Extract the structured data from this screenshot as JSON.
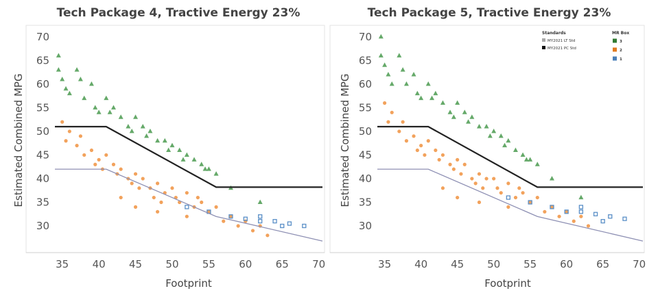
{
  "chart_data": [
    {
      "type": "scatter",
      "title": "Tech Package 4, Tractive Energy 23%",
      "xlabel": "Footprint",
      "ylabel": "Estimated Combined MPG",
      "xlim": [
        34,
        70.5
      ],
      "ylim": [
        24.5,
        72
      ],
      "xticks": [
        35,
        40,
        45,
        50,
        55,
        60,
        65,
        70
      ],
      "yticks": [
        30,
        35,
        40,
        45,
        50,
        55,
        60,
        65,
        70
      ],
      "grid": false,
      "legend": null,
      "standards": [
        {
          "name": "MY2021 PC Std",
          "color": "#222222",
          "x": [
            34,
            41,
            56,
            70.5
          ],
          "y": [
            51,
            51,
            38.2,
            38.2
          ]
        },
        {
          "name": "MY2021 LT Std",
          "color": "#8d8fb3",
          "x": [
            34,
            41,
            56,
            70.5
          ],
          "y": [
            42,
            42,
            32,
            26.8
          ]
        }
      ],
      "series": [
        {
          "name": "3",
          "color": "#4a9a4f",
          "marker": "triangle",
          "x": [
            34.5,
            34.5,
            35,
            35.5,
            36,
            37,
            37.5,
            38,
            39,
            39.5,
            40,
            41,
            41.5,
            42,
            43,
            44,
            44.5,
            45,
            46,
            46.5,
            47,
            48,
            49,
            49.5,
            50,
            51,
            51.5,
            52,
            53,
            54,
            54.5,
            55,
            56,
            58,
            62
          ],
          "y": [
            66,
            63,
            61,
            59,
            58,
            63,
            61,
            57,
            60,
            55,
            54,
            57,
            54,
            55,
            53,
            51,
            50,
            53,
            51,
            49,
            50,
            48,
            48,
            46,
            47,
            46,
            44,
            45,
            44,
            43,
            42,
            42,
            41,
            38,
            35
          ]
        },
        {
          "name": "2",
          "color": "#ef8b33",
          "marker": "circle",
          "x": [
            35,
            35.5,
            36,
            37,
            37.5,
            38,
            39,
            39.5,
            40,
            40.5,
            41,
            42,
            42.5,
            43,
            44,
            44.5,
            45,
            45.5,
            46,
            47,
            47.5,
            48,
            48.5,
            49,
            50,
            50.5,
            51,
            52,
            53,
            53.5,
            54,
            55,
            56,
            57,
            58,
            59,
            60,
            61,
            62,
            63,
            43,
            45,
            48,
            52
          ],
          "y": [
            52,
            48,
            50,
            47,
            49,
            45,
            46,
            43,
            44,
            42,
            45,
            43,
            41,
            42,
            40,
            39,
            41,
            38,
            40,
            38,
            36,
            39,
            35,
            37,
            38,
            36,
            35,
            37,
            34,
            36,
            35,
            33,
            34,
            31,
            32,
            30,
            31,
            29,
            30,
            28,
            36,
            34,
            33,
            32
          ]
        },
        {
          "name": "1",
          "color": "#5a8fc7",
          "marker": "square",
          "x": [
            52,
            55,
            58,
            60,
            62,
            64,
            66,
            68,
            62,
            65
          ],
          "y": [
            34,
            33,
            32,
            31.5,
            31,
            31,
            30.5,
            30,
            32,
            30
          ]
        }
      ]
    },
    {
      "type": "scatter",
      "title": "Tech Package 5, Tractive Energy 23%",
      "xlabel": "Footprint",
      "ylabel": "Estimated Combined MPG",
      "xlim": [
        34,
        70.5
      ],
      "ylim": [
        24.5,
        72
      ],
      "xticks": [
        35,
        40,
        45,
        50,
        55,
        60,
        65,
        70
      ],
      "yticks": [
        30,
        35,
        40,
        45,
        50,
        55,
        60,
        65,
        70
      ],
      "grid": false,
      "legend": "top-right",
      "legend_standards_title": "Standards",
      "legend_standards": [
        {
          "label": "MY2021 LT Std",
          "color": "#a8a8a8"
        },
        {
          "label": "MY2021 PC Std",
          "color": "#111111"
        }
      ],
      "legend_mrbox_title": "MR Box",
      "legend_mrbox": [
        {
          "label": "3",
          "color": "#2f7a32"
        },
        {
          "label": "2",
          "color": "#e07a1f"
        },
        {
          "label": "1",
          "color": "#4a7fb8"
        }
      ],
      "standards": [
        {
          "name": "MY2021 PC Std",
          "color": "#222222",
          "x": [
            34,
            41,
            56,
            70.5
          ],
          "y": [
            51,
            51,
            38.2,
            38.2
          ]
        },
        {
          "name": "MY2021 LT Std",
          "color": "#8d8fb3",
          "x": [
            34,
            41,
            56,
            70.5
          ],
          "y": [
            42,
            42,
            32,
            26.8
          ]
        }
      ],
      "series": [
        {
          "name": "3",
          "color": "#4a9a4f",
          "marker": "triangle",
          "x": [
            34.5,
            34.5,
            35,
            35.5,
            36,
            37,
            37.5,
            38,
            39,
            39.5,
            40,
            41,
            41.5,
            42,
            43,
            44,
            44.5,
            45,
            46,
            46.5,
            47,
            48,
            49,
            49.5,
            50,
            51,
            51.5,
            52,
            53,
            54,
            54.5,
            55,
            56,
            58,
            62
          ],
          "y": [
            70,
            66,
            64,
            62,
            60,
            66,
            63,
            60,
            62,
            58,
            57,
            60,
            57,
            58,
            56,
            54,
            53,
            56,
            54,
            52,
            53,
            51,
            51,
            49,
            50,
            49,
            47,
            48,
            46,
            45,
            44,
            44,
            43,
            40,
            36
          ]
        },
        {
          "name": "2",
          "color": "#ef8b33",
          "marker": "circle",
          "x": [
            35,
            35.5,
            36,
            37,
            37.5,
            38,
            39,
            39.5,
            40,
            40.5,
            41,
            42,
            42.5,
            43,
            44,
            44.5,
            45,
            45.5,
            46,
            47,
            47.5,
            48,
            48.5,
            49,
            50,
            50.5,
            51,
            52,
            53,
            53.5,
            54,
            55,
            56,
            57,
            58,
            59,
            60,
            61,
            62,
            63,
            43,
            45,
            48,
            52
          ],
          "y": [
            56,
            52,
            54,
            50,
            52,
            48,
            49,
            46,
            47,
            45,
            48,
            46,
            44,
            45,
            43,
            42,
            44,
            41,
            43,
            40,
            39,
            41,
            38,
            40,
            40,
            38,
            37,
            39,
            36,
            38,
            37,
            35,
            36,
            33,
            34,
            32,
            33,
            31,
            32,
            30,
            38,
            36,
            35,
            34
          ]
        },
        {
          "name": "1",
          "color": "#5a8fc7",
          "marker": "square",
          "x": [
            52,
            55,
            58,
            60,
            62,
            64,
            66,
            68,
            62,
            65
          ],
          "y": [
            36,
            35,
            34,
            33,
            33,
            32.5,
            32,
            31.5,
            34,
            31
          ]
        }
      ]
    }
  ]
}
